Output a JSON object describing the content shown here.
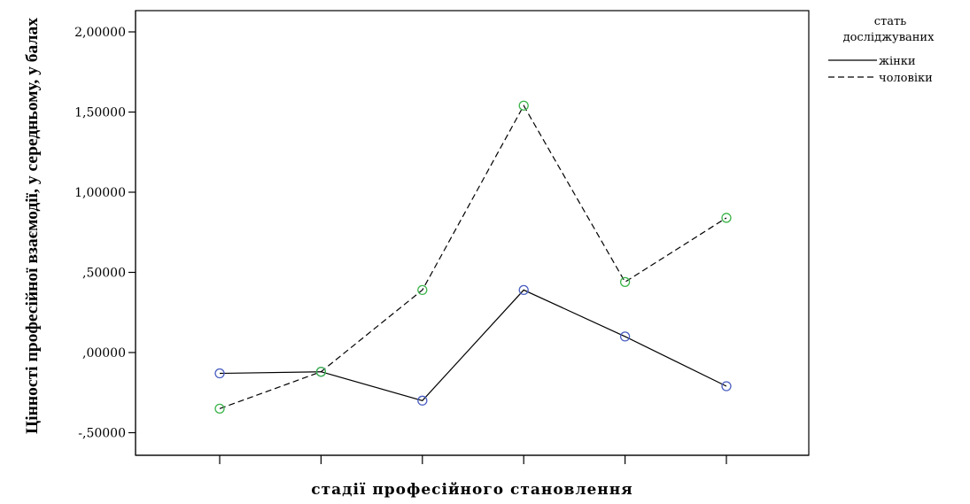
{
  "chart_data": {
    "type": "line",
    "title": "",
    "xlabel": "стадії професійного становлення",
    "ylabel": "Цінності професійної взаємодії, у середньому, у балах",
    "x": [
      1,
      2,
      3,
      4,
      5,
      6
    ],
    "ylim": [
      -0.65,
      2.15
    ],
    "yticks": [
      -0.5,
      0.0,
      0.5,
      1.0,
      1.5,
      2.0
    ],
    "ytick_labels": [
      "-,50000",
      ",00000",
      ",50000",
      "1,00000",
      "1,50000",
      "2,00000"
    ],
    "grid": false,
    "legend": {
      "title_line1": "стать",
      "title_line2": "досліджуваних",
      "placement": "top-right"
    },
    "series": [
      {
        "name": "жінки",
        "values": [
          -0.13,
          -0.12,
          -0.3,
          0.39,
          0.1,
          -0.21
        ],
        "line_style": "solid",
        "line_color": "#000000",
        "marker_color": "#4a5fc1"
      },
      {
        "name": "чоловіки",
        "values": [
          -0.35,
          -0.12,
          0.39,
          1.54,
          0.44,
          0.84
        ],
        "line_style": "dashed",
        "line_color": "#000000",
        "marker_color": "#3cb44b"
      }
    ]
  }
}
